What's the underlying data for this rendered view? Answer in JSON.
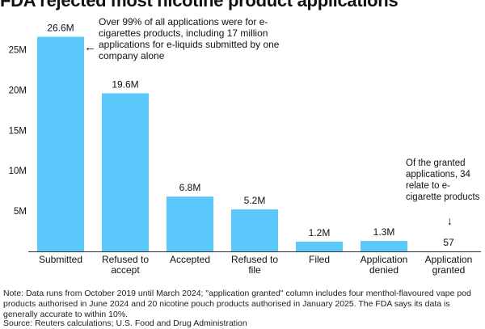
{
  "title": "FDA rejected most nicotine product applications",
  "annotations": {
    "main": "Over 99% of all applications were for e-cigarettes products, including 17 million applications for e-liquids submitted by one company alone",
    "main_arrow": "←",
    "granted": "Of the granted applications, 34 relate to e-cigarette products",
    "granted_arrow": "↓"
  },
  "note": "Note: Data runs from October 2019 until March 2024; \"application granted\" column includes four menthol-flavoured vape pod products authorised in June 2024 and 20 nicotine pouch products authorised in January 2025. The FDA says its data is generally accurate to within 10%.",
  "source": "Source: Reuters calculations; U.S. Food and Drug Administration",
  "colors": {
    "bar": "#5bc8fb",
    "text": "#111111",
    "axis": "#333333"
  },
  "chart_data": {
    "type": "bar",
    "title": "FDA rejected most nicotine product applications",
    "categories": [
      [
        "Submitted"
      ],
      [
        "Refused to",
        "accept"
      ],
      [
        "Accepted"
      ],
      [
        "Refused to",
        "file"
      ],
      [
        "Filed"
      ],
      [
        "Application",
        "denied"
      ],
      [
        "Application",
        "granted"
      ]
    ],
    "values": [
      26600000,
      19600000,
      6800000,
      5200000,
      1200000,
      1300000,
      57
    ],
    "data_labels": [
      "26.6M",
      "19.6M",
      "6.8M",
      "5.2M",
      "1.2M",
      "1.3M",
      "57"
    ],
    "y_ticks": [
      5000000,
      10000000,
      15000000,
      20000000,
      25000000
    ],
    "y_tick_labels": [
      "5M",
      "10M",
      "15M",
      "20M",
      "25M"
    ],
    "ylim": [
      0,
      28500000
    ],
    "xlabel": "",
    "ylabel": "",
    "grid": false
  }
}
